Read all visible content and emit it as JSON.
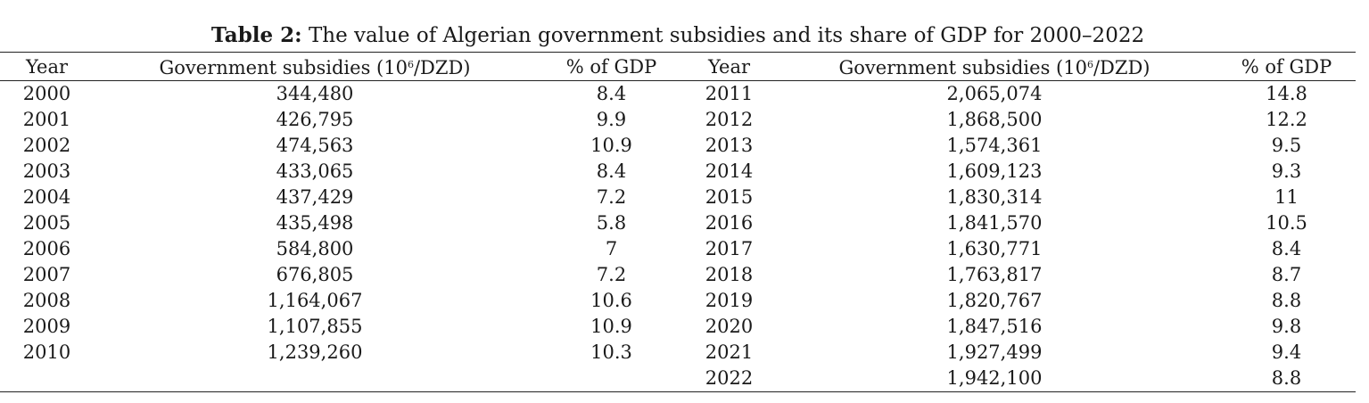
{
  "caption": {
    "label": "Table 2:",
    "text": "The value of Algerian government subsidies and its share of GDP for 2000–2022"
  },
  "header": {
    "year": "Year",
    "subsidies_pre": "Government subsidies (10",
    "subsidies_sup": "6",
    "subsidies_post": "/DZD)",
    "gdp": "% of GDP"
  },
  "rows": [
    {
      "left_year": "2000",
      "left_subsidies": "344,480",
      "left_gdp": "8.4",
      "right_year": "2011",
      "right_subsidies": "2,065,074",
      "right_gdp": "14.8"
    },
    {
      "left_year": "2001",
      "left_subsidies": "426,795",
      "left_gdp": "9.9",
      "right_year": "2012",
      "right_subsidies": "1,868,500",
      "right_gdp": "12.2"
    },
    {
      "left_year": "2002",
      "left_subsidies": "474,563",
      "left_gdp": "10.9",
      "right_year": "2013",
      "right_subsidies": "1,574,361",
      "right_gdp": "9.5"
    },
    {
      "left_year": "2003",
      "left_subsidies": "433,065",
      "left_gdp": "8.4",
      "right_year": "2014",
      "right_subsidies": "1,609,123",
      "right_gdp": "9.3"
    },
    {
      "left_year": "2004",
      "left_subsidies": "437,429",
      "left_gdp": "7.2",
      "right_year": "2015",
      "right_subsidies": "1,830,314",
      "right_gdp": "11"
    },
    {
      "left_year": "2005",
      "left_subsidies": "435,498",
      "left_gdp": "5.8",
      "right_year": "2016",
      "right_subsidies": "1,841,570",
      "right_gdp": "10.5"
    },
    {
      "left_year": "2006",
      "left_subsidies": "584,800",
      "left_gdp": "7",
      "right_year": "2017",
      "right_subsidies": "1,630,771",
      "right_gdp": "8.4"
    },
    {
      "left_year": "2007",
      "left_subsidies": "676,805",
      "left_gdp": "7.2",
      "right_year": "2018",
      "right_subsidies": "1,763,817",
      "right_gdp": "8.7"
    },
    {
      "left_year": "2008",
      "left_subsidies": "1,164,067",
      "left_gdp": "10.6",
      "right_year": "2019",
      "right_subsidies": "1,820,767",
      "right_gdp": "8.8"
    },
    {
      "left_year": "2009",
      "left_subsidies": "1,107,855",
      "left_gdp": "10.9",
      "right_year": "2020",
      "right_subsidies": "1,847,516",
      "right_gdp": "9.8"
    },
    {
      "left_year": "2010",
      "left_subsidies": "1,239,260",
      "left_gdp": "10.3",
      "right_year": "2021",
      "right_subsidies": "1,927,499",
      "right_gdp": "9.4"
    },
    {
      "left_year": "",
      "left_subsidies": "",
      "left_gdp": "",
      "right_year": "2022",
      "right_subsidies": "1,942,100",
      "right_gdp": "8.8"
    }
  ]
}
